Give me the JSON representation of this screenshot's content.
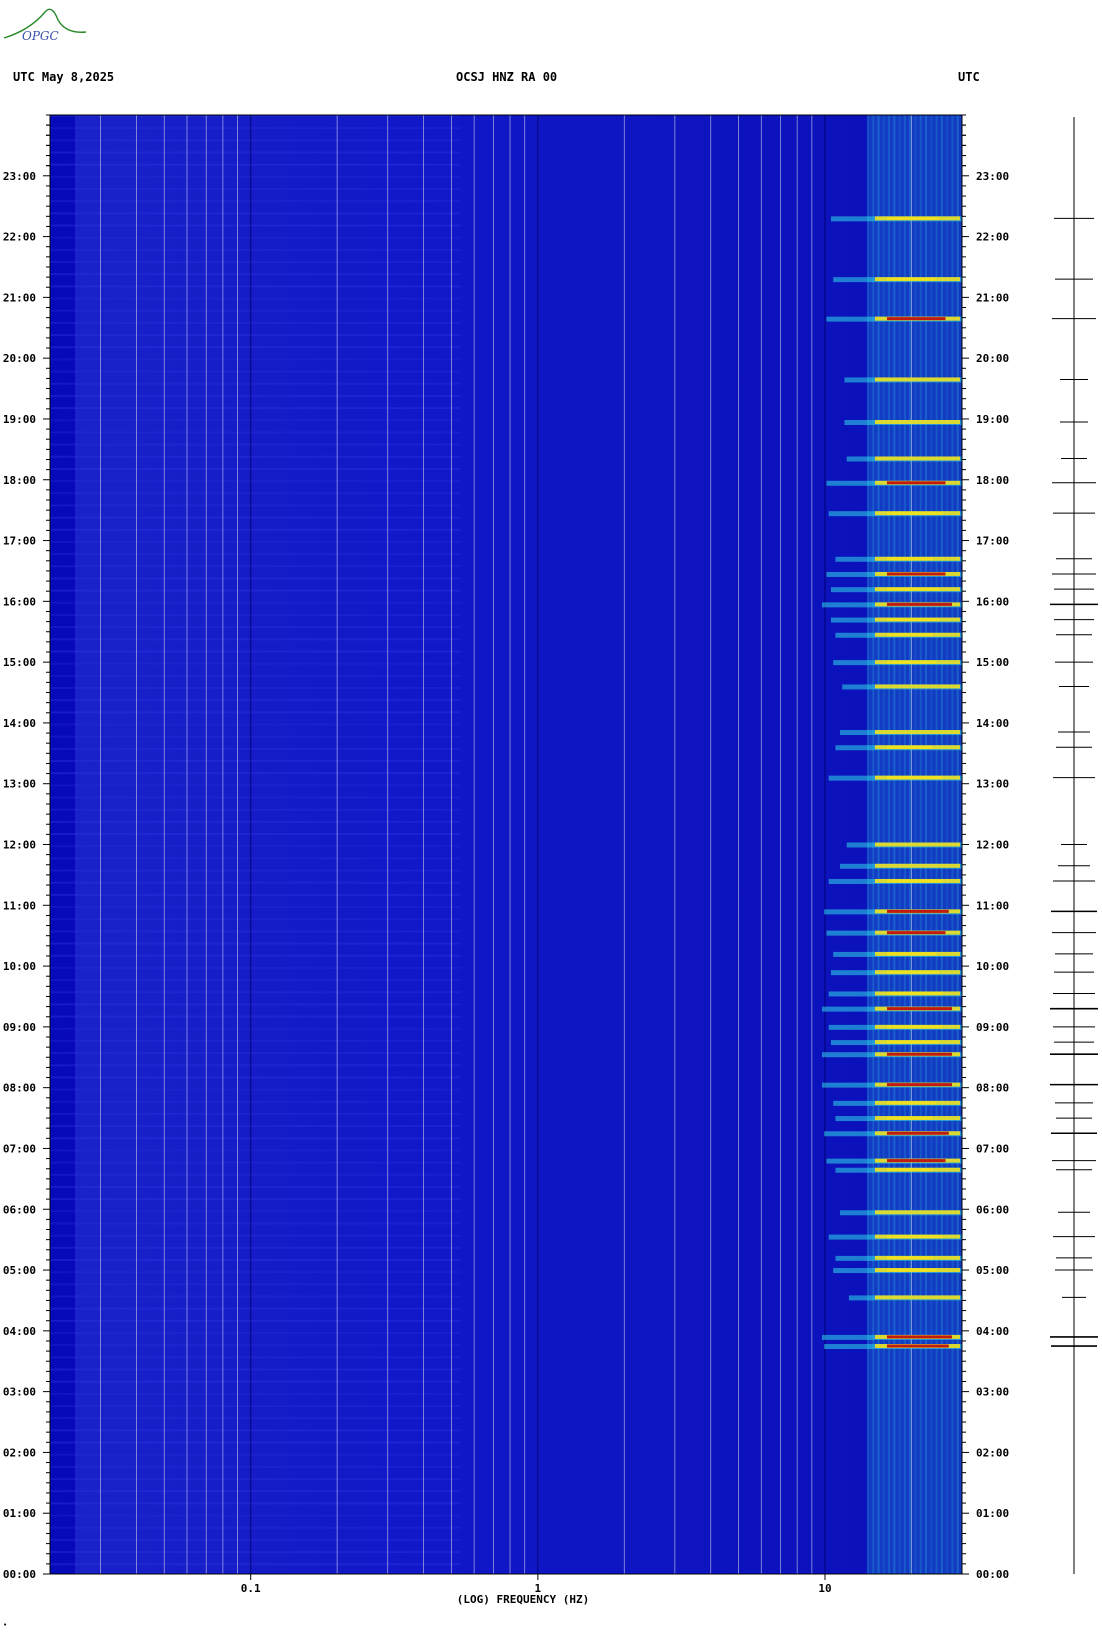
{
  "header": {
    "left": "UTC  May 8,2025",
    "center": "OCSJ HNZ RA 00",
    "right": "UTC"
  },
  "logo": {
    "text": "OPGC"
  },
  "colors": {
    "background": "#1010d0",
    "low_band": "#0000b0",
    "moderate": "#30d8e8",
    "high": "#f0e020",
    "very_high": "#c01010",
    "gridline": "#c8c8e8",
    "trace": "#000000"
  },
  "chart_data": {
    "type": "heatmap",
    "title": "OCSJ HNZ RA 00",
    "xlabel": "(LOG) FREQUENCY (HZ)",
    "ylabel": "UTC",
    "x_scale": "log",
    "xlim": [
      0.02,
      30
    ],
    "x_ticks": [
      0.1,
      1,
      10
    ],
    "x_tick_labels": [
      "0.1",
      "1",
      "10"
    ],
    "ylim_hours": [
      0,
      24
    ],
    "y_tick_labels": [
      "00:00",
      "01:00",
      "02:00",
      "03:00",
      "04:00",
      "05:00",
      "06:00",
      "07:00",
      "08:00",
      "09:00",
      "10:00",
      "11:00",
      "12:00",
      "13:00",
      "14:00",
      "15:00",
      "16:00",
      "17:00",
      "18:00",
      "19:00",
      "20:00",
      "21:00",
      "22:00",
      "23:00"
    ],
    "high_frequency_band_hz": [
      14,
      30
    ],
    "events": [
      {
        "hour": 3.75,
        "intensity": 0.95
      },
      {
        "hour": 3.9,
        "intensity": 1.0
      },
      {
        "hour": 4.55,
        "intensity": 0.4
      },
      {
        "hour": 5.0,
        "intensity": 0.75
      },
      {
        "hour": 5.2,
        "intensity": 0.7
      },
      {
        "hour": 5.55,
        "intensity": 0.85
      },
      {
        "hour": 5.95,
        "intensity": 0.6
      },
      {
        "hour": 6.65,
        "intensity": 0.7
      },
      {
        "hour": 6.8,
        "intensity": 0.9
      },
      {
        "hour": 7.25,
        "intensity": 0.95
      },
      {
        "hour": 7.5,
        "intensity": 0.7
      },
      {
        "hour": 7.75,
        "intensity": 0.75
      },
      {
        "hour": 8.05,
        "intensity": 1.0
      },
      {
        "hour": 8.55,
        "intensity": 1.0
      },
      {
        "hour": 8.75,
        "intensity": 0.8
      },
      {
        "hour": 9.0,
        "intensity": 0.85
      },
      {
        "hour": 9.3,
        "intensity": 1.0
      },
      {
        "hour": 9.55,
        "intensity": 0.85
      },
      {
        "hour": 9.9,
        "intensity": 0.8
      },
      {
        "hour": 10.2,
        "intensity": 0.75
      },
      {
        "hour": 10.55,
        "intensity": 0.9
      },
      {
        "hour": 10.9,
        "intensity": 0.95
      },
      {
        "hour": 11.4,
        "intensity": 0.85
      },
      {
        "hour": 11.65,
        "intensity": 0.6
      },
      {
        "hour": 12.0,
        "intensity": 0.45
      },
      {
        "hour": 13.1,
        "intensity": 0.85
      },
      {
        "hour": 13.6,
        "intensity": 0.7
      },
      {
        "hour": 13.85,
        "intensity": 0.6
      },
      {
        "hour": 14.6,
        "intensity": 0.55
      },
      {
        "hour": 15.0,
        "intensity": 0.75
      },
      {
        "hour": 15.45,
        "intensity": 0.7
      },
      {
        "hour": 15.7,
        "intensity": 0.8
      },
      {
        "hour": 15.95,
        "intensity": 1.0
      },
      {
        "hour": 16.2,
        "intensity": 0.8
      },
      {
        "hour": 16.45,
        "intensity": 0.9
      },
      {
        "hour": 16.7,
        "intensity": 0.7
      },
      {
        "hour": 17.45,
        "intensity": 0.85
      },
      {
        "hour": 17.95,
        "intensity": 0.9
      },
      {
        "hour": 18.35,
        "intensity": 0.45
      },
      {
        "hour": 18.95,
        "intensity": 0.5
      },
      {
        "hour": 19.65,
        "intensity": 0.5
      },
      {
        "hour": 20.65,
        "intensity": 0.9
      },
      {
        "hour": 21.3,
        "intensity": 0.75
      },
      {
        "hour": 22.3,
        "intensity": 0.8
      }
    ]
  }
}
